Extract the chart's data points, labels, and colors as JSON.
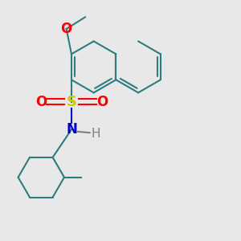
{
  "bg_color": "#e8e8e8",
  "bond_color": "#2d7d7d",
  "S_color": "#cccc00",
  "O_color": "#ff0000",
  "N_color": "#0000cc",
  "H_color": "#808080",
  "bond_width": 1.5,
  "font_size": 11,
  "fig_size": [
    3.0,
    3.0
  ],
  "dpi": 100,
  "xlim": [
    -1.5,
    2.5
  ],
  "ylim": [
    -2.5,
    2.0
  ]
}
